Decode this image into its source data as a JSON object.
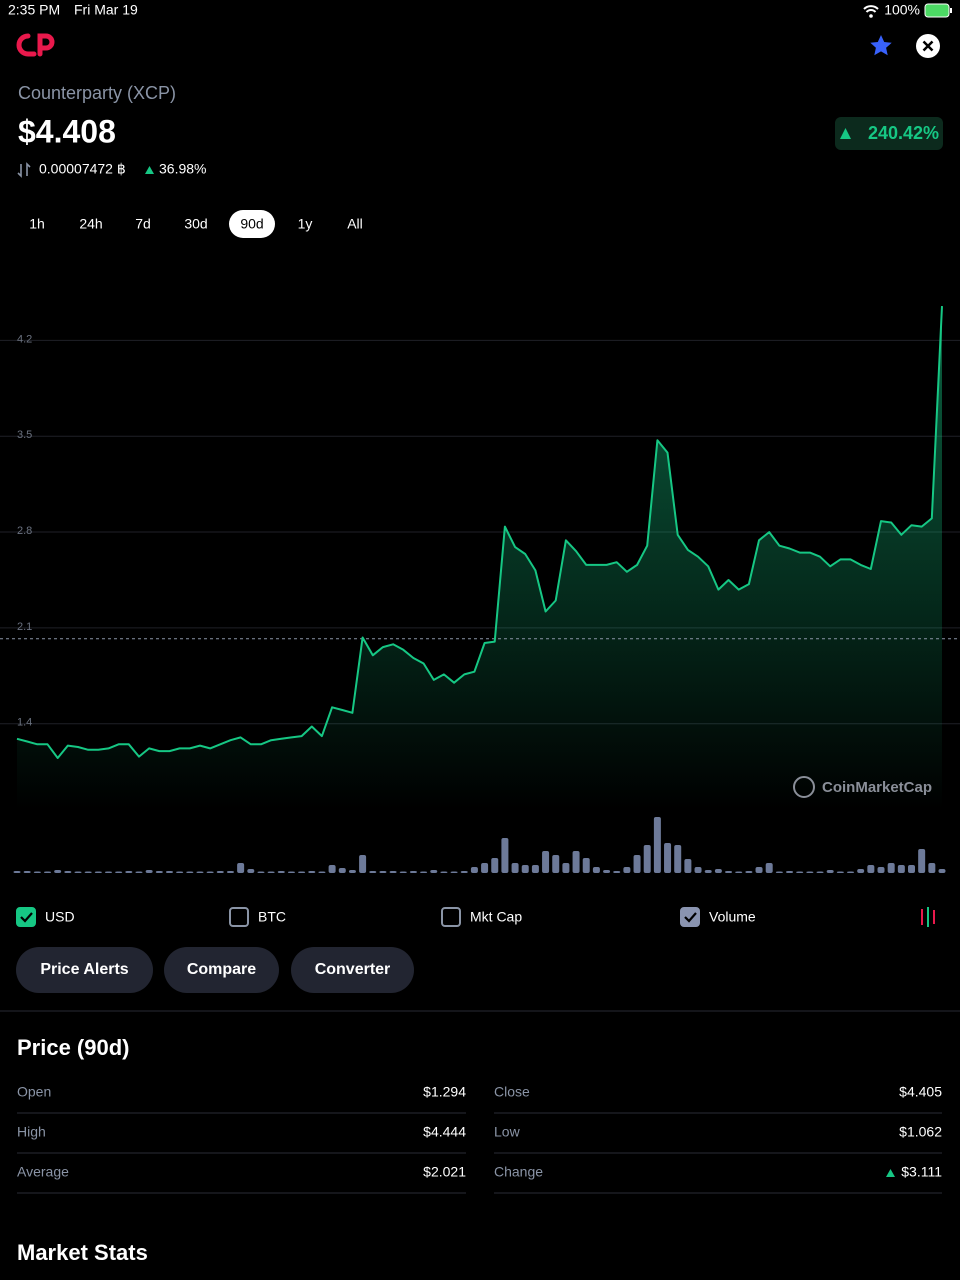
{
  "status_bar": {
    "time": "2:35 PM",
    "date": "Fri Mar 19",
    "battery": "100%"
  },
  "header": {
    "name": "Counterparty (XCP)",
    "price": "$4.408",
    "btc_price": "0.00007472 ฿",
    "btc_change": "36.98%",
    "change": "240.42%"
  },
  "time_ranges": {
    "options": [
      "1h",
      "24h",
      "7d",
      "30d",
      "90d",
      "1y",
      "All"
    ],
    "selected": 4
  },
  "chart_data": {
    "type": "line",
    "color": "#16c784",
    "volume_color": "#6d7a99",
    "values": [
      1.29,
      1.27,
      1.25,
      1.25,
      1.15,
      1.24,
      1.23,
      1.21,
      1.21,
      1.22,
      1.25,
      1.25,
      1.16,
      1.22,
      1.2,
      1.2,
      1.22,
      1.22,
      1.24,
      1.22,
      1.25,
      1.28,
      1.3,
      1.25,
      1.25,
      1.28,
      1.29,
      1.3,
      1.31,
      1.38,
      1.31,
      1.52,
      1.5,
      1.48,
      2.03,
      1.9,
      1.96,
      1.98,
      1.94,
      1.88,
      1.84,
      1.72,
      1.76,
      1.7,
      1.76,
      1.78,
      1.99,
      2.0,
      2.84,
      2.69,
      2.64,
      2.52,
      2.22,
      2.3,
      2.74,
      2.66,
      2.56,
      2.56,
      2.56,
      2.58,
      2.51,
      2.56,
      2.7,
      3.47,
      3.38,
      2.78,
      2.67,
      2.62,
      2.55,
      2.38,
      2.45,
      2.38,
      2.42,
      2.74,
      2.8,
      2.7,
      2.68,
      2.65,
      2.65,
      2.62,
      2.55,
      2.6,
      2.6,
      2.56,
      2.53,
      2.88,
      2.87,
      2.78,
      2.85,
      2.84,
      2.9,
      4.45
    ],
    "volume": [
      2,
      2,
      1,
      1,
      3,
      2,
      1,
      1,
      1,
      0,
      1,
      2,
      1,
      3,
      2,
      2,
      1,
      0,
      1,
      1,
      2,
      2,
      10,
      4,
      1,
      1,
      2,
      0,
      0,
      2,
      1,
      8,
      5,
      3,
      18,
      2,
      2,
      2,
      1,
      2,
      1,
      3,
      0,
      0,
      2,
      6,
      10,
      15,
      35,
      10,
      8,
      8,
      22,
      18,
      10,
      22,
      15,
      6,
      3,
      2,
      6,
      18,
      28,
      56,
      30,
      28,
      14,
      6,
      3,
      4,
      2,
      1,
      2,
      6,
      10,
      1,
      2,
      1,
      0,
      1,
      3,
      1,
      1,
      4,
      8,
      6,
      10,
      8,
      8,
      24,
      10,
      4
    ],
    "reference_value": 2.021,
    "ylim": [
      0.77,
      4.86
    ],
    "yticks": [
      1.4,
      2.1,
      2.8,
      3.5,
      4.2
    ],
    "y2lim": [
      0,
      60
    ],
    "grid": true,
    "watermark": "CoinMarketCap"
  },
  "toggles": [
    {
      "label": "USD",
      "checked": true,
      "color": "#16c784"
    },
    {
      "label": "BTC",
      "checked": false,
      "color": "#8a94a6"
    },
    {
      "label": "Mkt Cap",
      "checked": false,
      "color": "#8a94a6"
    },
    {
      "label": "Volume",
      "checked": true,
      "color": "#8a94b0"
    }
  ],
  "buttons": [
    "Price Alerts",
    "Compare",
    "Converter"
  ],
  "price_section": {
    "title": "Price (90d)",
    "rows": [
      [
        "Open",
        "$1.294",
        "Close",
        "$4.405"
      ],
      [
        "High",
        "$4.444",
        "Low",
        "$1.062"
      ],
      [
        "Average",
        "$2.021",
        "Change",
        "$3.111"
      ]
    ]
  },
  "market_stats": {
    "title": "Market Stats"
  }
}
